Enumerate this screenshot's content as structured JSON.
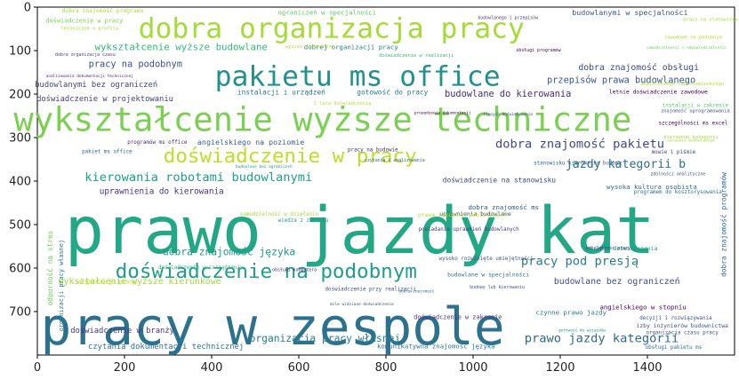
{
  "chart_data": {
    "type": "wordcloud",
    "xlim": [
      0,
      1600
    ],
    "ylim": [
      800,
      0
    ],
    "x_ticks": [
      0,
      200,
      400,
      600,
      800,
      1000,
      1200,
      1400
    ],
    "y_ticks": [
      0,
      100,
      200,
      300,
      400,
      500,
      600,
      700
    ],
    "colormap": "viridis",
    "words": [
      {
        "text": "prawo jazdy kat",
        "x": 740,
        "y": 515,
        "size": 150,
        "color": "#22a884"
      },
      {
        "text": "pracy w zespole",
        "x": 540,
        "y": 735,
        "size": 118,
        "color": "#2c728e"
      },
      {
        "text": "wykształcenie wyższe techniczne",
        "x": 655,
        "y": 258,
        "size": 76,
        "color": "#7ad151"
      },
      {
        "text": "dobra organizacja pracy",
        "x": 675,
        "y": 50,
        "size": 64,
        "color": "#a5db36"
      },
      {
        "text": "pakietu ms office",
        "x": 735,
        "y": 160,
        "size": 64,
        "color": "#21918c"
      },
      {
        "text": "doświadczenie w pracy",
        "x": 580,
        "y": 343,
        "size": 46,
        "color": "#bddf26"
      },
      {
        "text": "doświadczenie na podobnym",
        "x": 525,
        "y": 608,
        "size": 46,
        "color": "#1f9e89"
      },
      {
        "text": "kierowania robotami budowlanymi",
        "x": 370,
        "y": 392,
        "size": 28,
        "color": "#1fa187"
      },
      {
        "text": "dobra znajomość pakietu",
        "x": 1245,
        "y": 315,
        "size": 28,
        "color": "#3e4989"
      },
      {
        "text": "pracy pod presją",
        "x": 1245,
        "y": 585,
        "size": 28,
        "color": "#2a788e"
      },
      {
        "text": "prawo jazdy kategorii",
        "x": 1295,
        "y": 762,
        "size": 28,
        "color": "#31688e"
      },
      {
        "text": "jazdy kategorii b",
        "x": 1350,
        "y": 362,
        "size": 27,
        "color": "#2e6e8e"
      },
      {
        "text": "organizacja pracy własnej",
        "x": 660,
        "y": 762,
        "size": 23,
        "color": "#277f8e"
      },
      {
        "text": "dobra znajomość języka",
        "x": 440,
        "y": 563,
        "size": 23,
        "color": "#1f988b"
      },
      {
        "text": "wykształcenie wyższe budowlane",
        "x": 330,
        "y": 92,
        "size": 22,
        "color": "#35b779"
      },
      {
        "text": "pracy na podobnym",
        "x": 225,
        "y": 132,
        "size": 21,
        "color": "#3b528b"
      },
      {
        "text": "przepisów prawa budowlanego",
        "x": 1340,
        "y": 168,
        "size": 21,
        "color": "#39568c"
      },
      {
        "text": "budowlane do kierowania",
        "x": 1080,
        "y": 200,
        "size": 21,
        "color": "#472d7b"
      },
      {
        "text": "wykształcenie wyższe kierunkowe",
        "x": 235,
        "y": 632,
        "size": 20,
        "color": "#a0da39"
      },
      {
        "text": "dobra znajomość obsługi",
        "x": 1380,
        "y": 140,
        "size": 20,
        "color": "#3f4788"
      },
      {
        "text": "budowlane bez ograniczeń",
        "x": 1330,
        "y": 632,
        "size": 20,
        "color": "#3d4e8a"
      },
      {
        "text": "uprawnienia do kierowania",
        "x": 285,
        "y": 424,
        "size": 19,
        "color": "#46327e"
      },
      {
        "text": "doświadczenie w projektowaniu",
        "x": 155,
        "y": 212,
        "size": 18,
        "color": "#433e85"
      },
      {
        "text": "budowlanymi bez ograniczeń",
        "x": 135,
        "y": 180,
        "size": 18,
        "color": "#414487"
      },
      {
        "text": "doświadczenie w branży",
        "x": 195,
        "y": 745,
        "size": 18,
        "color": "#453781"
      },
      {
        "text": "czytania dokumentacji technicznej",
        "x": 295,
        "y": 782,
        "size": 18,
        "color": "#2d708e"
      },
      {
        "text": "angielskiego na poziomie",
        "x": 490,
        "y": 310,
        "size": 17,
        "color": "#355f8d"
      },
      {
        "text": "budowlanymi w specjalności",
        "x": 1360,
        "y": 12,
        "size": 17,
        "color": "#3b528b"
      },
      {
        "text": "gotowość do pracy",
        "x": 815,
        "y": 196,
        "size": 16,
        "color": "#287d8e"
      },
      {
        "text": "instalacji i urządzeń",
        "x": 560,
        "y": 196,
        "size": 16,
        "color": "#2d708e"
      },
      {
        "text": "doświadczenie na stanowisku",
        "x": 1060,
        "y": 398,
        "size": 16,
        "color": "#414487"
      },
      {
        "text": "dobrej organizacji pracy",
        "x": 720,
        "y": 92,
        "size": 15,
        "color": "#277f8e"
      },
      {
        "text": "organizacji pracy",
        "x": 160,
        "y": 632,
        "size": 13,
        "color": "#c8e020"
      },
      {
        "text": "ograniczeń w specjalności",
        "x": 665,
        "y": 12,
        "size": 15,
        "color": "#5ec962"
      },
      {
        "text": "doświadczenie w pracy",
        "x": 108,
        "y": 32,
        "size": 14,
        "color": "#7ad151"
      },
      {
        "text": "dobra znajomość programu",
        "x": 150,
        "y": 8,
        "size": 13,
        "color": "#a5db36"
      },
      {
        "text": "wysoka kultura osobista",
        "x": 1410,
        "y": 413,
        "size": 15,
        "color": "#31688e"
      },
      {
        "text": "dobra znajomość ms",
        "x": 1070,
        "y": 460,
        "size": 15,
        "color": "#39568c"
      },
      {
        "text": "odporność na stres",
        "x": 30,
        "y": 600,
        "size": 16,
        "color": "#6ece58",
        "vertical": true
      },
      {
        "text": "organizacji pracy własnej",
        "x": 55,
        "y": 640,
        "size": 14,
        "color": "#2a788e",
        "vertical": true
      },
      {
        "text": "dobra znajomość programów",
        "x": 1575,
        "y": 500,
        "size": 16,
        "color": "#31688e",
        "vertical": true
      },
      {
        "text": "angielskiego w stopniu",
        "x": 1390,
        "y": 690,
        "size": 15,
        "color": "#440154"
      },
      {
        "text": "czynne prawo jazdy",
        "x": 1225,
        "y": 702,
        "size": 15,
        "color": "#2a788e"
      },
      {
        "text": "doświadczenie w zakresie",
        "x": 965,
        "y": 713,
        "size": 14,
        "color": "#46327e"
      },
      {
        "text": "komunikatywna znajomość języka",
        "x": 915,
        "y": 780,
        "size": 15,
        "color": "#2c728e"
      },
      {
        "text": "izby inżynierów budownictwa",
        "x": 1480,
        "y": 733,
        "size": 13,
        "color": "#3b528b"
      },
      {
        "text": "uprawnienia budowlane",
        "x": 1005,
        "y": 475,
        "size": 13,
        "color": "#3e4989"
      },
      {
        "text": "wiedza z zakresu",
        "x": 610,
        "y": 492,
        "size": 12,
        "color": "#1f9e89"
      },
      {
        "text": "programów ms office",
        "x": 275,
        "y": 312,
        "size": 12,
        "color": "#472d7b"
      },
      {
        "text": "pracy na budowie",
        "x": 770,
        "y": 330,
        "size": 12,
        "color": "#482878"
      },
      {
        "text": "doświadczenie przy realizacji",
        "x": 765,
        "y": 650,
        "size": 12,
        "color": "#3e4989"
      },
      {
        "text": "wysoko rozwinięte umiejętności",
        "x": 1030,
        "y": 580,
        "size": 12,
        "color": "#38588c"
      },
      {
        "text": "budowlane w specjalności",
        "x": 1035,
        "y": 615,
        "size": 13,
        "color": "#2c728e"
      },
      {
        "text": "doświadczenie w zarządzaniu",
        "x": 375,
        "y": 600,
        "size": 12,
        "color": "#35b779"
      },
      {
        "text": "letnie doświadczenie zawodowe",
        "x": 1425,
        "y": 195,
        "size": 13,
        "color": "#440154"
      },
      {
        "text": "instalacji w zakresie",
        "x": 1510,
        "y": 228,
        "size": 12,
        "color": "#5ec962"
      },
      {
        "text": "posiadanie uprawnień budowlanych",
        "x": 990,
        "y": 512,
        "size": 12,
        "color": "#443983"
      },
      {
        "text": "stanowisku kierownika budowy",
        "x": 1240,
        "y": 360,
        "size": 12,
        "color": "#355f8d"
      },
      {
        "text": "wyższe techniczne",
        "x": 625,
        "y": 92,
        "size": 11,
        "color": "#b5de2b"
      },
      {
        "text": "doświadczenie w realizacji",
        "x": 870,
        "y": 112,
        "size": 11,
        "color": "#35b779"
      },
      {
        "text": "prawa zamówień publicznych",
        "x": 975,
        "y": 478,
        "size": 13,
        "color": "#b8de29"
      },
      {
        "text": "samodzielność w działaniu",
        "x": 555,
        "y": 478,
        "size": 12,
        "color": "#a0da39"
      },
      {
        "text": "3 lata doświadczenia",
        "x": 1345,
        "y": 555,
        "size": 13,
        "color": "#1f988b"
      },
      {
        "text": "programem do kosztorysowania",
        "x": 1470,
        "y": 427,
        "size": 12,
        "color": "#2c728e"
      },
      {
        "text": "pakiet ms office",
        "x": 160,
        "y": 334,
        "size": 12,
        "color": "#31688e"
      },
      {
        "text": "szczególności ms excel",
        "x": 1505,
        "y": 268,
        "size": 12,
        "color": "#440154"
      },
      {
        "text": "samodzielności i odpowiedzialności",
        "x": 1490,
        "y": 95,
        "size": 9,
        "color": "#6ece58"
      },
      {
        "text": "angielskiego lub niemieckiego",
        "x": 1480,
        "y": 178,
        "size": 11,
        "color": "#b5de2b"
      },
      {
        "text": "znajomość oprogramowania",
        "x": 1510,
        "y": 240,
        "size": 11,
        "color": "#3b528b"
      },
      {
        "text": "mowie i piśmie",
        "x": 1460,
        "y": 335,
        "size": 12,
        "color": "#414487"
      },
      {
        "text": "kierowców kategorii",
        "x": 1500,
        "y": 300,
        "size": 11,
        "color": "#a0da39"
      },
      {
        "text": "decyzji i rozwiązywania",
        "x": 1465,
        "y": 716,
        "size": 12,
        "color": "#3b528b"
      },
      {
        "text": "organizacja czasu pracy",
        "x": 1480,
        "y": 750,
        "size": 12,
        "color": "#3b528b"
      },
      {
        "text": "obsługi pakietu ms",
        "x": 1460,
        "y": 784,
        "size": 12,
        "color": "#2c728e"
      },
      {
        "text": "zawodowe na podobnym",
        "x": 1505,
        "y": 70,
        "size": 11,
        "color": "#b5de2b"
      },
      {
        "text": "techniczne o profilu",
        "x": 120,
        "y": 50,
        "size": 11,
        "color": "#a0da39"
      },
      {
        "text": "2 lata doświadczenia",
        "x": 700,
        "y": 222,
        "size": 11,
        "color": "#b5de2b"
      },
      {
        "text": "pracy na stanowisku",
        "x": 1545,
        "y": 30,
        "size": 11,
        "color": "#a5db36"
      },
      {
        "text": "sprawnie budowlanego",
        "x": 1500,
        "y": 308,
        "size": 9,
        "color": "#a5db36"
      },
      {
        "text": "analizowania dokumentacji technicznej",
        "x": 120,
        "y": 160,
        "size": 9,
        "color": "#472d7b"
      },
      {
        "text": "budowy lub kierowaniu",
        "x": 1055,
        "y": 645,
        "size": 10,
        "color": "#3b528b"
      },
      {
        "text": "obsługi komputera",
        "x": 590,
        "y": 605,
        "size": 10,
        "color": "#482878"
      },
      {
        "text": "obsługi programów",
        "x": 1150,
        "y": 100,
        "size": 10,
        "color": "#440154"
      },
      {
        "text": "dobra organizacja czasu",
        "x": 110,
        "y": 110,
        "size": 10,
        "color": "#433e85"
      },
      {
        "text": "budowlanego i przepisów",
        "x": 1080,
        "y": 25,
        "size": 10,
        "color": "#443983"
      },
      {
        "text": "czytania i analizowania",
        "x": 820,
        "y": 353,
        "size": 10,
        "color": "#31688e"
      },
      {
        "text": "budowlane bez ograniczeń",
        "x": 520,
        "y": 368,
        "size": 9,
        "color": "#1f988b"
      },
      {
        "text": "ślepych doświadczenia",
        "x": 1080,
        "y": 248,
        "size": 9,
        "color": "#3e4989"
      },
      {
        "text": "mile widziane doświadczenie",
        "x": 745,
        "y": 685,
        "size": 9,
        "color": "#3e4989"
      },
      {
        "text": "prowadzenia dokumentacji",
        "x": 930,
        "y": 245,
        "size": 9,
        "color": "#440154"
      },
      {
        "text": "dobra znajomość",
        "x": 870,
        "y": 655,
        "size": 9,
        "color": "#31688e"
      },
      {
        "text": "umiejętność pracy",
        "x": 1310,
        "y": 555,
        "size": 10,
        "color": "#443983"
      },
      {
        "text": "zdolności analityczne",
        "x": 1470,
        "y": 385,
        "size": 10,
        "color": "#3b528b"
      },
      {
        "text": "gotowość do wyjazdów",
        "x": 1250,
        "y": 745,
        "size": 9,
        "color": "#1f988b"
      }
    ]
  }
}
